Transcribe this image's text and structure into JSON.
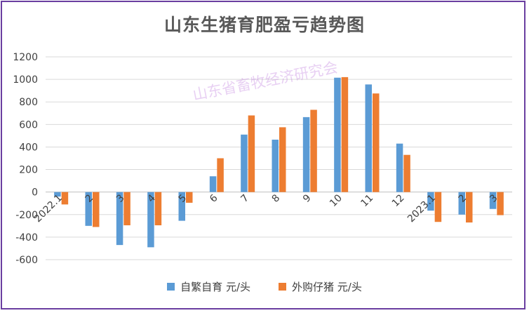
{
  "chart_data": {
    "type": "bar",
    "title": "山东生猪育肥盈亏趋势图",
    "watermark": "山东省畜牧经济研究会",
    "categories": [
      "2022.1",
      "2",
      "3",
      "4",
      "5",
      "6",
      "7",
      "8",
      "9",
      "10",
      "11",
      "12",
      "2023.1",
      "2",
      "3"
    ],
    "series": [
      {
        "name": "自繁自育 元/头",
        "color": "#5b9bd5",
        "values": [
          -40,
          -300,
          -470,
          -490,
          -255,
          140,
          510,
          465,
          665,
          1015,
          955,
          430,
          -165,
          -200,
          -150
        ]
      },
      {
        "name": "外购仔猪 元/头",
        "color": "#ed7d31",
        "values": [
          -110,
          -310,
          -295,
          -295,
          -95,
          300,
          680,
          575,
          730,
          1020,
          875,
          330,
          -265,
          -270,
          -205
        ]
      }
    ],
    "yticks": [
      "1200",
      "1000",
      "800",
      "600",
      "400",
      "200",
      "0",
      "-200",
      "-400",
      "-600"
    ],
    "ylim": [
      -600,
      1200
    ],
    "grid": true,
    "legend_position": "bottom"
  }
}
